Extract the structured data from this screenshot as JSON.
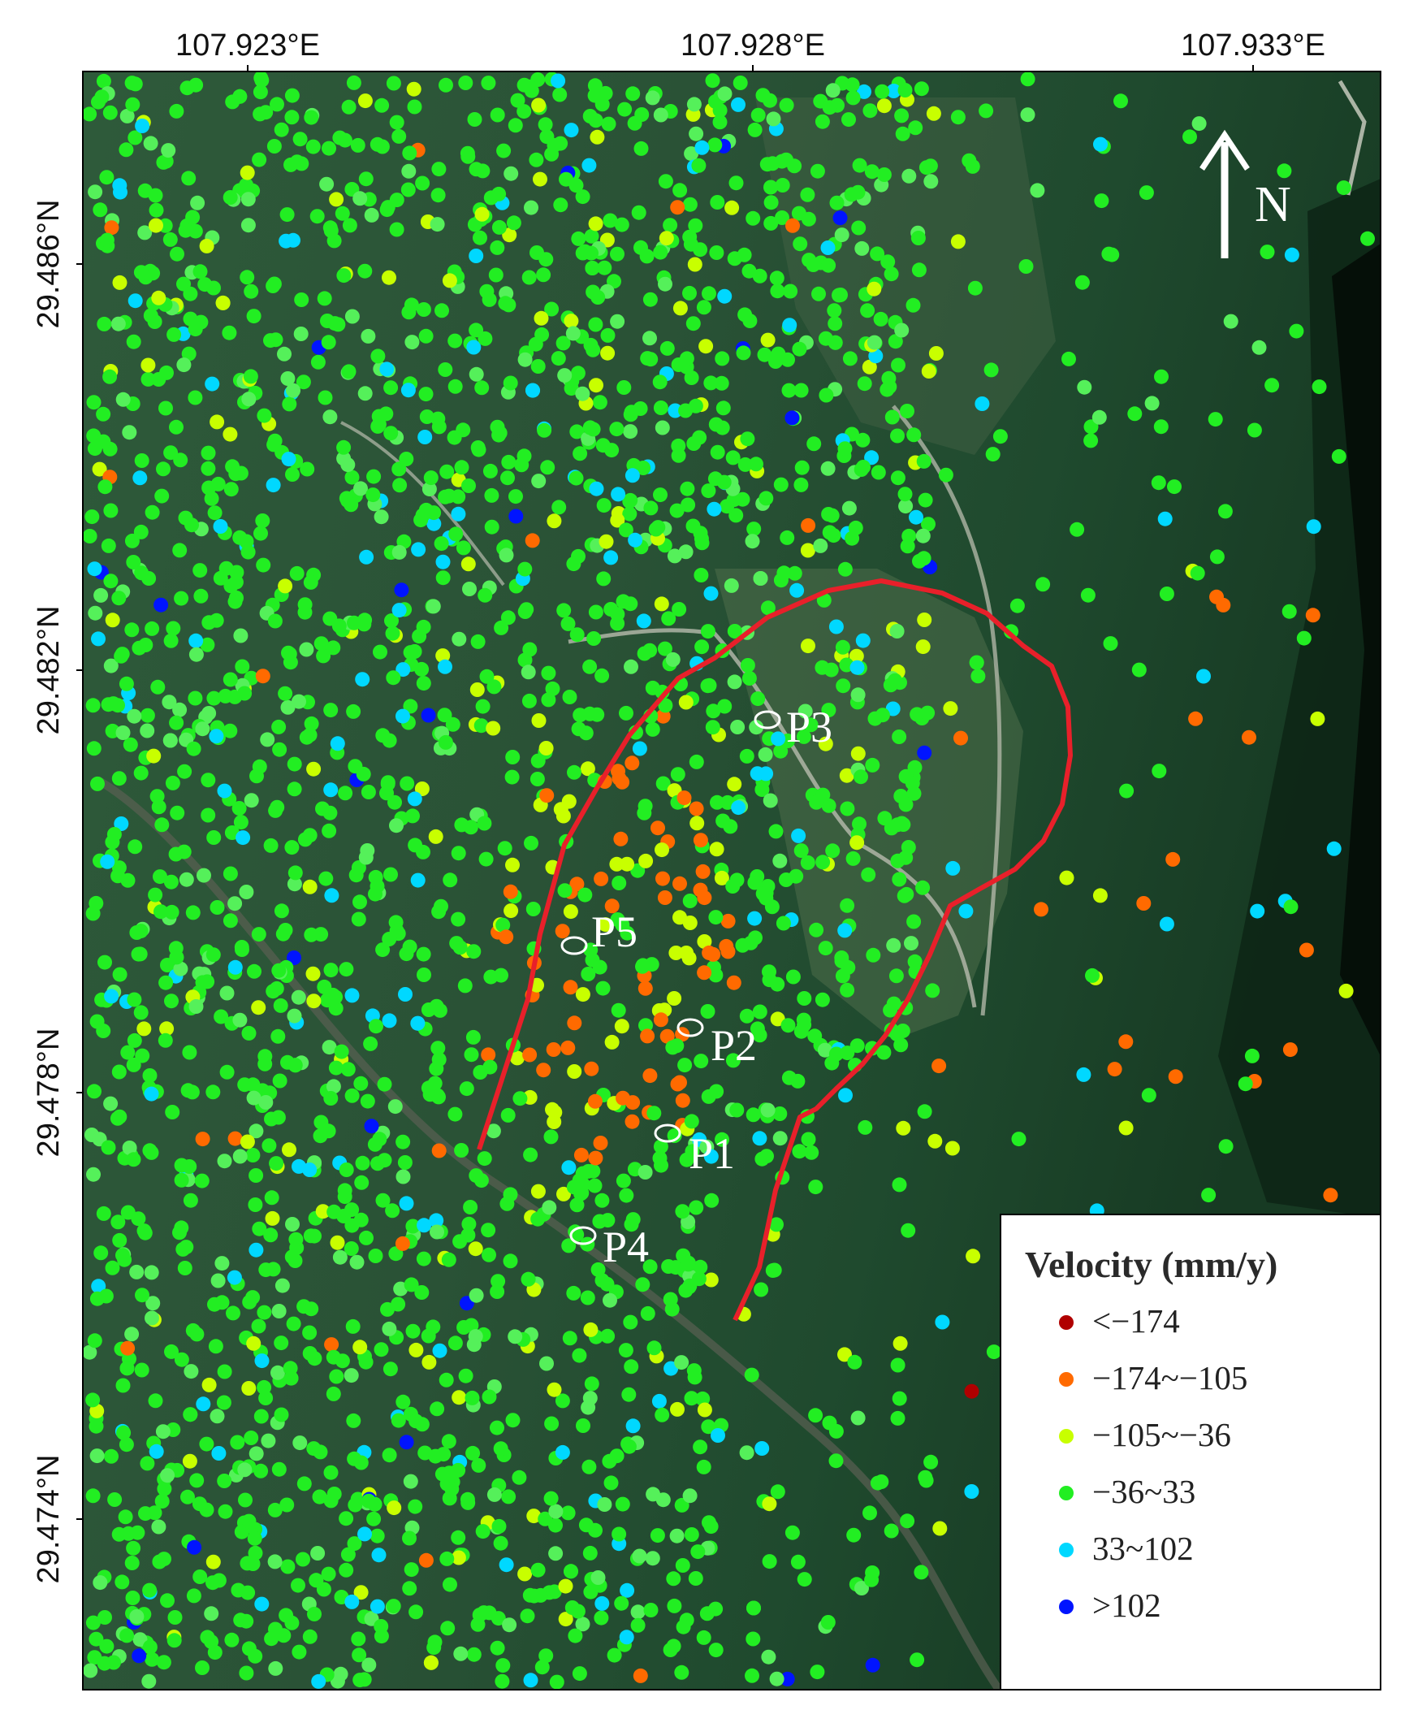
{
  "map": {
    "lon_labels": [
      "107.923°E",
      "107.928°E",
      "107.933°E"
    ],
    "lat_labels": [
      "29.486°N",
      "29.482°N",
      "29.478°N",
      "29.474°N"
    ],
    "north_label": "N",
    "points": [
      {
        "id": "P1",
        "label": "P1"
      },
      {
        "id": "P2",
        "label": "P2"
      },
      {
        "id": "P3",
        "label": "P3"
      },
      {
        "id": "P4",
        "label": "P4"
      },
      {
        "id": "P5",
        "label": "P5"
      }
    ],
    "boundary": {
      "color": "#e8202a"
    }
  },
  "legend": {
    "title": "Velocity (mm/y)",
    "classes": [
      {
        "label": "<−174",
        "color": "#b00000"
      },
      {
        "label": "−174~−105",
        "color": "#ff6a00"
      },
      {
        "label": "−105~−36",
        "color": "#c8ff00"
      },
      {
        "label": "−36~33",
        "color": "#22ee22"
      },
      {
        "label": "33~102",
        "color": "#00d8ff"
      },
      {
        "label": ">102",
        "color": "#0014ff"
      }
    ]
  }
}
